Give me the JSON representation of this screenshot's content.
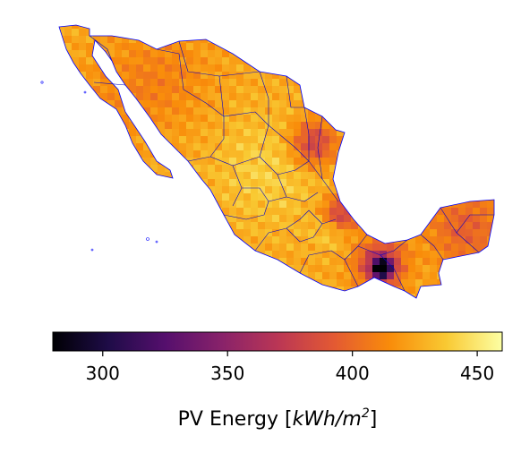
{
  "chart_data": {
    "type": "heatmap",
    "title": "",
    "region": "Mexico",
    "colormap": "inferno",
    "colorbar": {
      "orientation": "horizontal",
      "range": [
        280,
        460
      ],
      "ticks": [
        300,
        350,
        400,
        450
      ],
      "tick_labels": [
        "300",
        "350",
        "400",
        "450"
      ],
      "label_text": "PV Energy [",
      "label_unit": "kWh/m",
      "label_exp": "2",
      "label_close": "]"
    },
    "boundary_color": "#0000ff",
    "grid_resolution": "coarse raster cells",
    "approx_values": {
      "baja_california": 420,
      "north_west": 425,
      "central_plateau": 440,
      "gulf_coast": 375,
      "south_east_chiapas": 365,
      "yucatan": 395
    }
  }
}
